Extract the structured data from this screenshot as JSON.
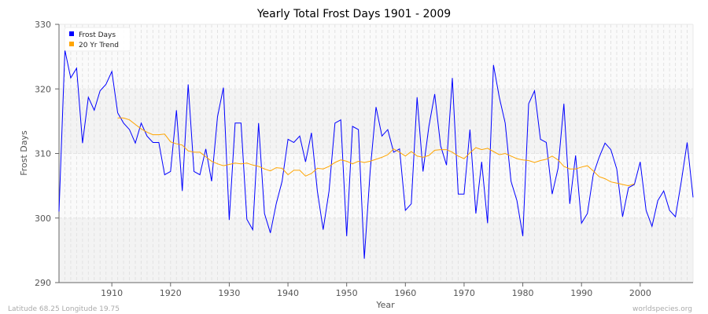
{
  "chart_data": {
    "type": "line",
    "title": "Yearly Total Frost Days 1901 - 2009",
    "xlabel": "Year",
    "ylabel": "Frost Days",
    "xlim": [
      1901,
      2009
    ],
    "ylim": [
      290,
      330
    ],
    "x_ticks": [
      1910,
      1920,
      1930,
      1940,
      1950,
      1960,
      1970,
      1980,
      1990,
      2000
    ],
    "y_ticks": [
      290,
      300,
      310,
      320,
      330
    ],
    "grid": true,
    "legend_position": "top-left",
    "series": [
      {
        "name": "Frost Days",
        "color": "#0000ff",
        "start_year": 1901,
        "values": [
          301,
          326,
          321.7,
          323.2,
          311.6,
          318.7,
          316.7,
          319.7,
          320.7,
          322.7,
          316.3,
          314.7,
          313.7,
          311.6,
          314.7,
          312.7,
          311.7,
          311.7,
          306.7,
          307.2,
          316.7,
          304.2,
          320.7,
          307.2,
          306.7,
          310.7,
          305.7,
          315.7,
          320.2,
          299.7,
          314.7,
          314.7,
          299.8,
          298.2,
          314.7,
          300.7,
          297.7,
          302.2,
          305.7,
          312.2,
          311.7,
          312.7,
          308.7,
          313.2,
          304.2,
          298.2,
          304.2,
          314.7,
          315.2,
          297.2,
          314.2,
          313.7,
          293.7,
          307.2,
          317.2,
          312.7,
          313.7,
          310.2,
          310.7,
          301.2,
          302.2,
          318.7,
          307.2,
          314.2,
          319.2,
          311.2,
          308.2,
          321.7,
          303.7,
          303.7,
          313.7,
          300.7,
          308.7,
          299.2,
          323.7,
          318.7,
          314.7,
          305.7,
          302.7,
          297.2,
          317.7,
          319.7,
          312.2,
          311.7,
          303.7,
          307.7,
          317.7,
          302.2,
          309.7,
          299.2,
          300.7,
          306.7,
          309.4,
          311.6,
          310.6,
          307.6,
          300.2,
          304.7,
          305.2,
          308.7,
          301.2,
          298.7,
          302.7,
          304.2,
          301.2,
          300.2,
          305.7,
          311.7,
          303.2
        ]
      },
      {
        "name": "20 Yr Trend",
        "color": "#ffa500",
        "start_year": 1911,
        "values": [
          315.5,
          315.5,
          315.2,
          314.5,
          313.8,
          313.3,
          312.9,
          312.9,
          313.0,
          311.8,
          311.5,
          311.3,
          310.4,
          310.2,
          310.2,
          309.5,
          308.8,
          308.4,
          308.1,
          308.3,
          308.5,
          308.4,
          308.5,
          308.2,
          308.0,
          307.6,
          307.3,
          307.8,
          307.7,
          306.7,
          307.4,
          307.4,
          306.5,
          306.9,
          307.7,
          307.6,
          308.0,
          308.6,
          309.0,
          308.8,
          308.4,
          308.8,
          308.6,
          308.8,
          309.1,
          309.4,
          309.8,
          310.7,
          310.2,
          309.6,
          310.3,
          309.6,
          309.4,
          309.7,
          310.5,
          310.6,
          310.6,
          310.2,
          309.6,
          309.2,
          310.1,
          310.9,
          310.6,
          310.8,
          310.3,
          309.8,
          310.0,
          309.6,
          309.2,
          309.0,
          308.9,
          308.6,
          308.9,
          309.1,
          309.6,
          309.0,
          308.0,
          307.6,
          307.6,
          307.9,
          308.1,
          307.3,
          306.4,
          306.1,
          305.6,
          305.4,
          305.2,
          305.0,
          305.3
        ]
      }
    ]
  },
  "footer": {
    "location": "Latitude 68.25 Longitude 19.75",
    "credit": "worldspecies.org"
  }
}
